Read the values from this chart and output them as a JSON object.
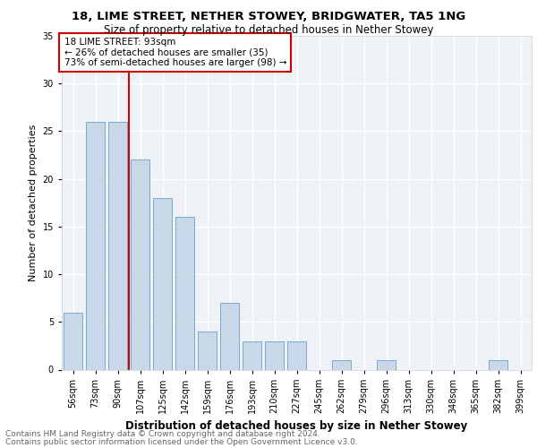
{
  "title1": "18, LIME STREET, NETHER STOWEY, BRIDGWATER, TA5 1NG",
  "title2": "Size of property relative to detached houses in Nether Stowey",
  "xlabel": "Distribution of detached houses by size in Nether Stowey",
  "ylabel": "Number of detached properties",
  "categories": [
    "56sqm",
    "73sqm",
    "90sqm",
    "107sqm",
    "125sqm",
    "142sqm",
    "159sqm",
    "176sqm",
    "193sqm",
    "210sqm",
    "227sqm",
    "245sqm",
    "262sqm",
    "279sqm",
    "296sqm",
    "313sqm",
    "330sqm",
    "348sqm",
    "365sqm",
    "382sqm",
    "399sqm"
  ],
  "values": [
    6,
    26,
    26,
    22,
    18,
    16,
    4,
    7,
    3,
    3,
    3,
    0,
    1,
    0,
    1,
    0,
    0,
    0,
    0,
    1,
    0
  ],
  "bar_color": "#c8d8e8",
  "bar_edge_color": "#7aaBcc",
  "red_line_index": 2,
  "annotation_text": "18 LIME STREET: 93sqm\n← 26% of detached houses are smaller (35)\n73% of semi-detached houses are larger (98) →",
  "annotation_box_color": "#ffffff",
  "annotation_box_edge_color": "#cc0000",
  "footer1": "Contains HM Land Registry data © Crown copyright and database right 2024.",
  "footer2": "Contains public sector information licensed under the Open Government Licence v3.0.",
  "ylim": [
    0,
    35
  ],
  "yticks": [
    0,
    5,
    10,
    15,
    20,
    25,
    30,
    35
  ],
  "background_color": "#eef2f7",
  "grid_color": "#ffffff",
  "title1_fontsize": 9.5,
  "title2_fontsize": 8.5,
  "xlabel_fontsize": 8.5,
  "ylabel_fontsize": 8,
  "tick_fontsize": 7,
  "annotation_fontsize": 7.5,
  "footer_fontsize": 6.5
}
